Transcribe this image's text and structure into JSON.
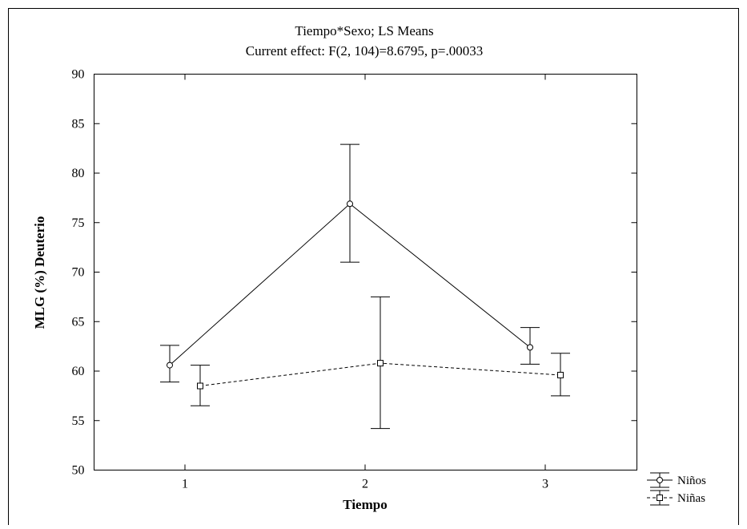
{
  "chart_data": {
    "type": "line",
    "title": "Tiempo*Sexo; LS Means",
    "subtitle": "Current effect: F(2, 104)=8.6795, p=.00033",
    "xlabel": "Tiempo",
    "ylabel": "MLG (%) Deuterio",
    "categories": [
      "1",
      "2",
      "3"
    ],
    "ylim": [
      50,
      90
    ],
    "yticks": [
      50,
      55,
      60,
      65,
      70,
      75,
      80,
      85,
      90
    ],
    "grid": false,
    "legend_position": "bottom-right",
    "series": [
      {
        "name": "Niños",
        "marker": "circle",
        "line_style": "solid",
        "values": [
          60.6,
          76.9,
          62.4
        ],
        "error_upper": [
          62.6,
          82.9,
          64.4
        ],
        "error_lower": [
          58.9,
          71.0,
          60.7
        ]
      },
      {
        "name": "Niñas",
        "marker": "square",
        "line_style": "dashed",
        "values": [
          58.5,
          60.8,
          59.6
        ],
        "error_upper": [
          60.6,
          67.5,
          61.8
        ],
        "error_lower": [
          56.5,
          54.2,
          57.5
        ]
      }
    ]
  }
}
